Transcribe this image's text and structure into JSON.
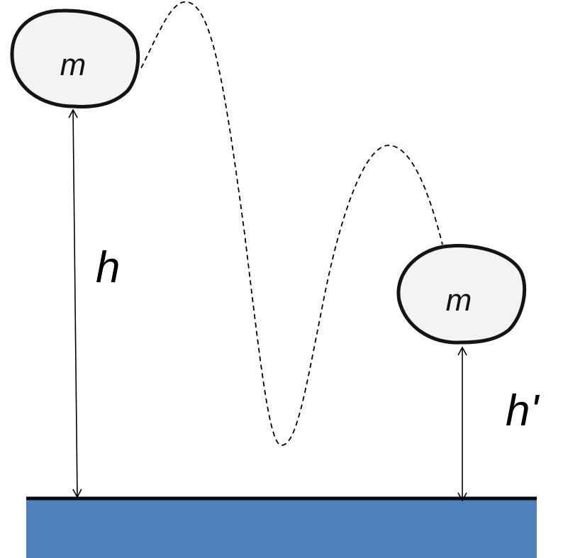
{
  "figure": {
    "title": "",
    "mass_start": {
      "label": "m"
    },
    "mass_end": {
      "label": "m"
    },
    "height_initial": {
      "label": "h"
    },
    "height_final": {
      "label": "h'"
    },
    "trajectory": {
      "style": "dashed"
    }
  },
  "colors": {
    "ground": "#4f81bd",
    "ground_line": "#0a0a0a",
    "ball_fill": "#f3f3f3",
    "ball_stroke": "#141414",
    "ink": "#000000"
  }
}
